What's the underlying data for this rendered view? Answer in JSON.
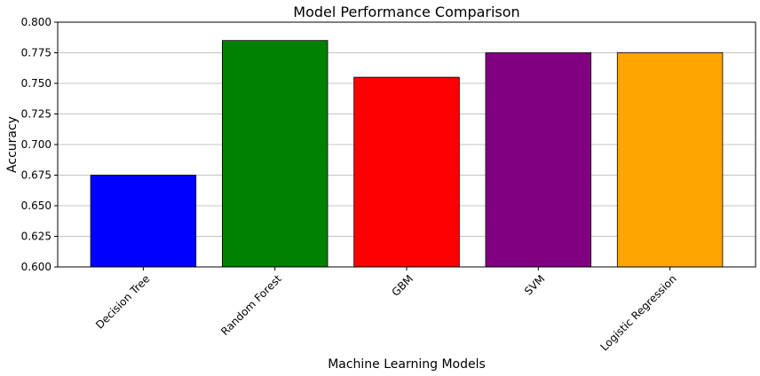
{
  "chart_data": {
    "type": "bar",
    "title": "Model Performance Comparison",
    "xlabel": "Machine Learning Models",
    "ylabel": "Accuracy",
    "categories": [
      "Decision Tree",
      "Random Forest",
      "GBM",
      "SVM",
      "Logistic Regression"
    ],
    "values": [
      0.675,
      0.785,
      0.755,
      0.775,
      0.775
    ],
    "colors": [
      "#0000ff",
      "#008000",
      "#ff0000",
      "#800080",
      "#ffa500"
    ],
    "ylim": [
      0.6,
      0.8
    ],
    "yticks": [
      0.6,
      0.625,
      0.65,
      0.675,
      0.7,
      0.725,
      0.75,
      0.775,
      0.8
    ],
    "ytick_labels": [
      "0.600",
      "0.625",
      "0.650",
      "0.675",
      "0.700",
      "0.725",
      "0.750",
      "0.775",
      "0.800"
    ],
    "grid": "y-axis only",
    "legend": "none",
    "xtick_rotation_deg": 45
  }
}
